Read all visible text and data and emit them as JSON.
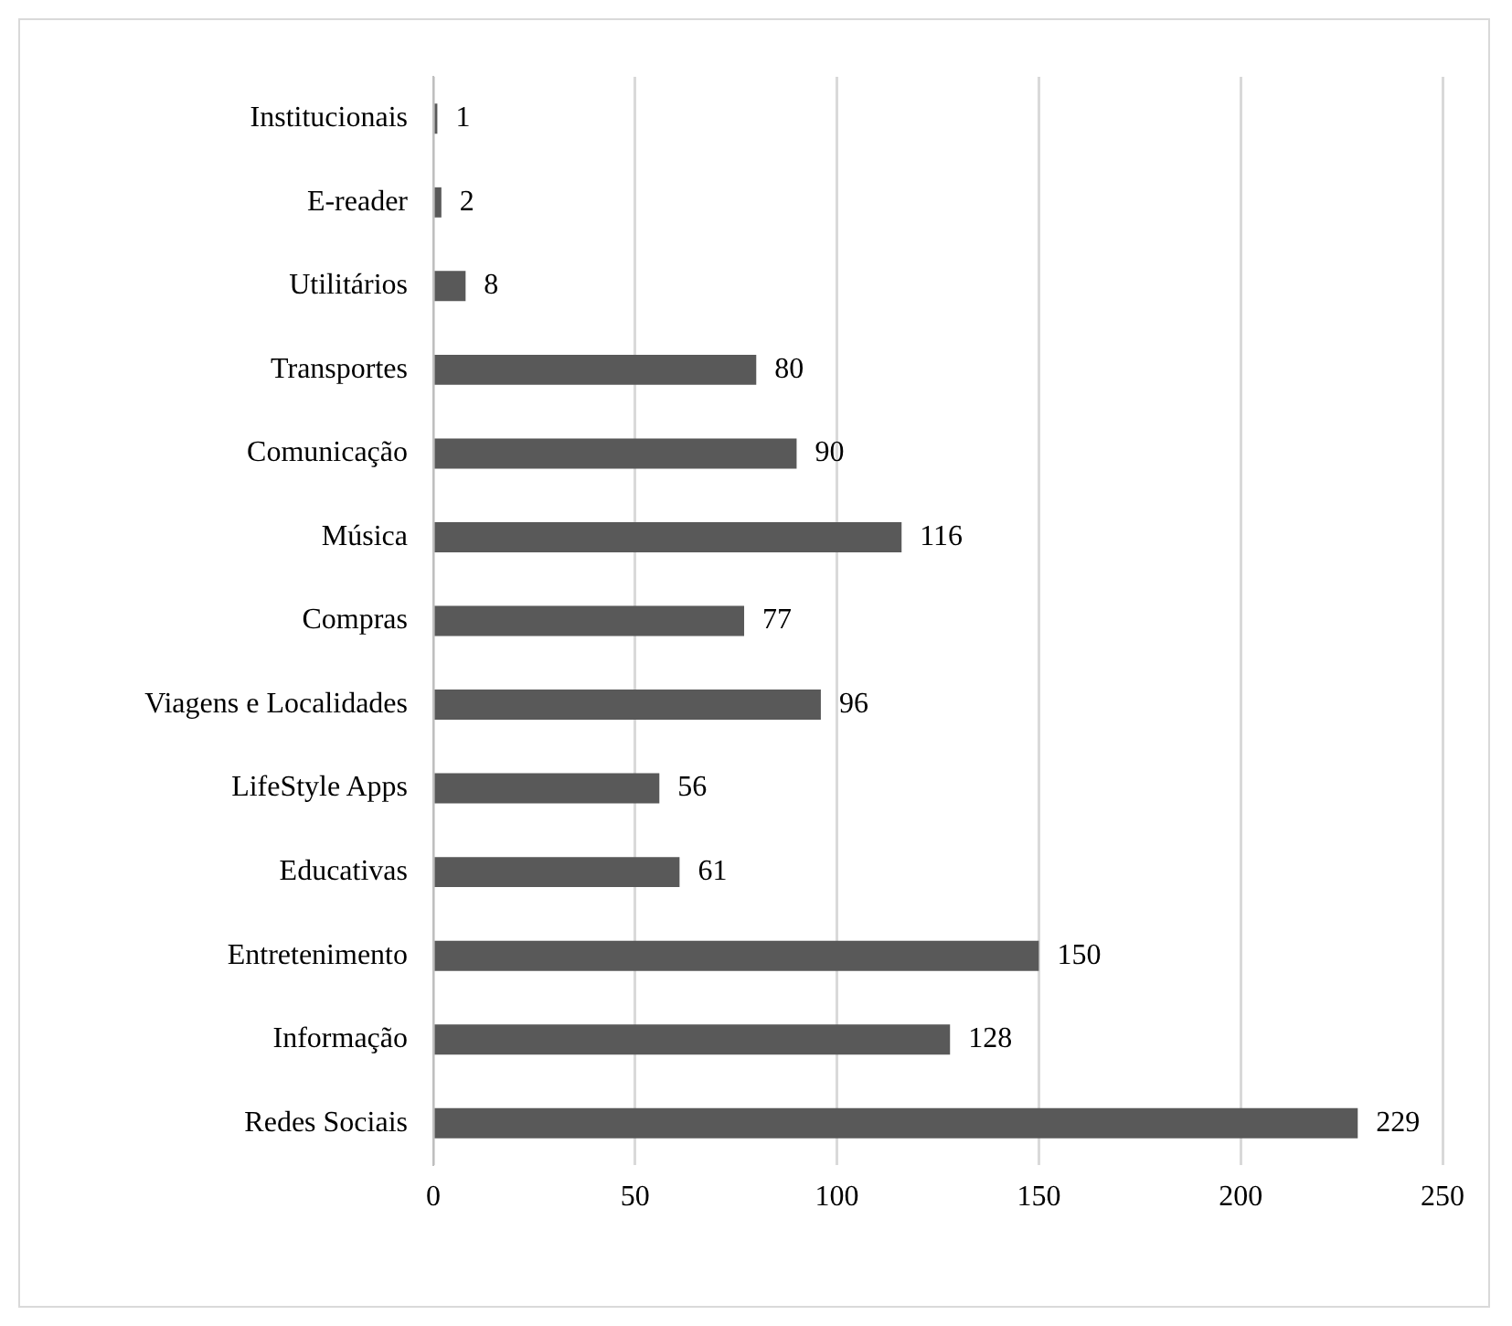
{
  "chart_data": {
    "type": "bar",
    "orientation": "horizontal",
    "categories": [
      "Institucionais",
      "E-reader",
      "Utilitários",
      "Transportes",
      "Comunicação",
      "Música",
      "Compras",
      "Viagens e Localidades",
      "LifeStyle Apps",
      "Educativas",
      "Entretenimento",
      "Informação",
      "Redes Sociais"
    ],
    "values": [
      1,
      2,
      8,
      80,
      90,
      116,
      77,
      96,
      56,
      61,
      150,
      128,
      229
    ],
    "color": "#595959",
    "xlim": [
      0,
      250
    ],
    "xticks": [
      0,
      50,
      100,
      150,
      200,
      250
    ],
    "grid": "x",
    "legend": false,
    "data_labels": true
  }
}
